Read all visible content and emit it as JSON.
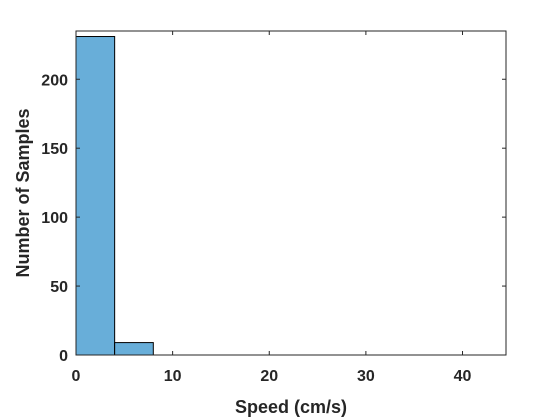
{
  "chart_data": {
    "type": "bar",
    "subtype": "histogram",
    "title": "",
    "xlabel": "Speed (cm/s)",
    "ylabel": "Number of Samples",
    "xlim": [
      0,
      44.5
    ],
    "ylim": [
      0,
      235
    ],
    "xticks": [
      0,
      10,
      20,
      30,
      40
    ],
    "yticks": [
      0,
      50,
      100,
      150,
      200
    ],
    "bins": [
      {
        "start": 0,
        "end": 4,
        "count": 231
      },
      {
        "start": 4,
        "end": 8,
        "count": 9
      },
      {
        "start": 8,
        "end": 12,
        "count": 0
      },
      {
        "start": 12,
        "end": 16,
        "count": 0
      },
      {
        "start": 16,
        "end": 20,
        "count": 0
      },
      {
        "start": 20,
        "end": 24,
        "count": 0
      },
      {
        "start": 24,
        "end": 28,
        "count": 0
      },
      {
        "start": 28,
        "end": 32,
        "count": 0
      },
      {
        "start": 32,
        "end": 36,
        "count": 0
      },
      {
        "start": 36,
        "end": 40,
        "count": 0
      },
      {
        "start": 40,
        "end": 44,
        "count": 0
      }
    ],
    "bar_color": "#68aed9",
    "grid": false,
    "box": true
  }
}
